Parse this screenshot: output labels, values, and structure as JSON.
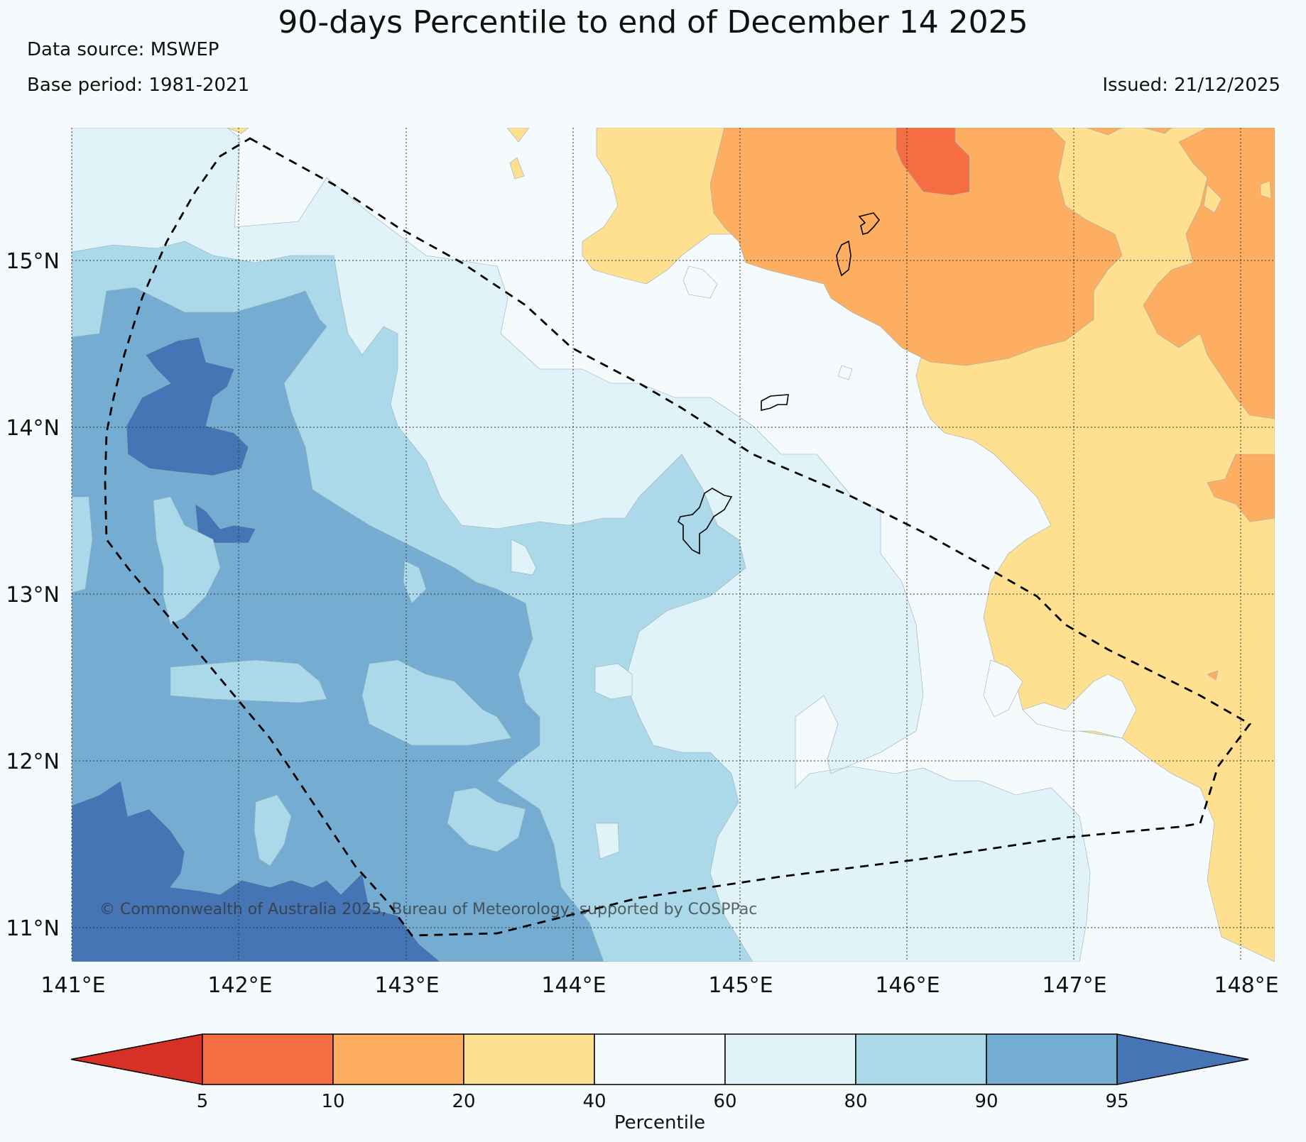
{
  "header": {
    "title": "90-days Percentile to end of December 14 2025",
    "data_source": "Data source: MSWEP",
    "base_period": "Base period: 1981-2021",
    "issued": "Issued: 21/12/2025"
  },
  "map": {
    "lat_labels": [
      "15°N",
      "14°N",
      "13°N",
      "12°N",
      "11°N"
    ],
    "lon_labels": [
      "141°E",
      "142°E",
      "143°E",
      "144°E",
      "145°E",
      "146°E",
      "147°E",
      "148°E"
    ],
    "copyright": "© Commonwealth of Australia 2025, Bureau of Meteorology, supported by COSPPac"
  },
  "legend": {
    "label": "Percentile",
    "ticks": [
      "5",
      "10",
      "20",
      "40",
      "60",
      "80",
      "90",
      "95"
    ],
    "bins": [
      {
        "range": "<5",
        "color": "#d73027"
      },
      {
        "range": "5-10",
        "color": "#f46d43"
      },
      {
        "range": "10-20",
        "color": "#fdae61"
      },
      {
        "range": "20-40",
        "color": "#fee090"
      },
      {
        "range": "40-60",
        "color": "#f5fbfd"
      },
      {
        "range": "60-80",
        "color": "#e0f3f8"
      },
      {
        "range": "80-90",
        "color": "#abd9e9"
      },
      {
        "range": "90-95",
        "color": "#74add1"
      },
      {
        "range": ">95",
        "color": "#4575b4"
      }
    ]
  }
}
